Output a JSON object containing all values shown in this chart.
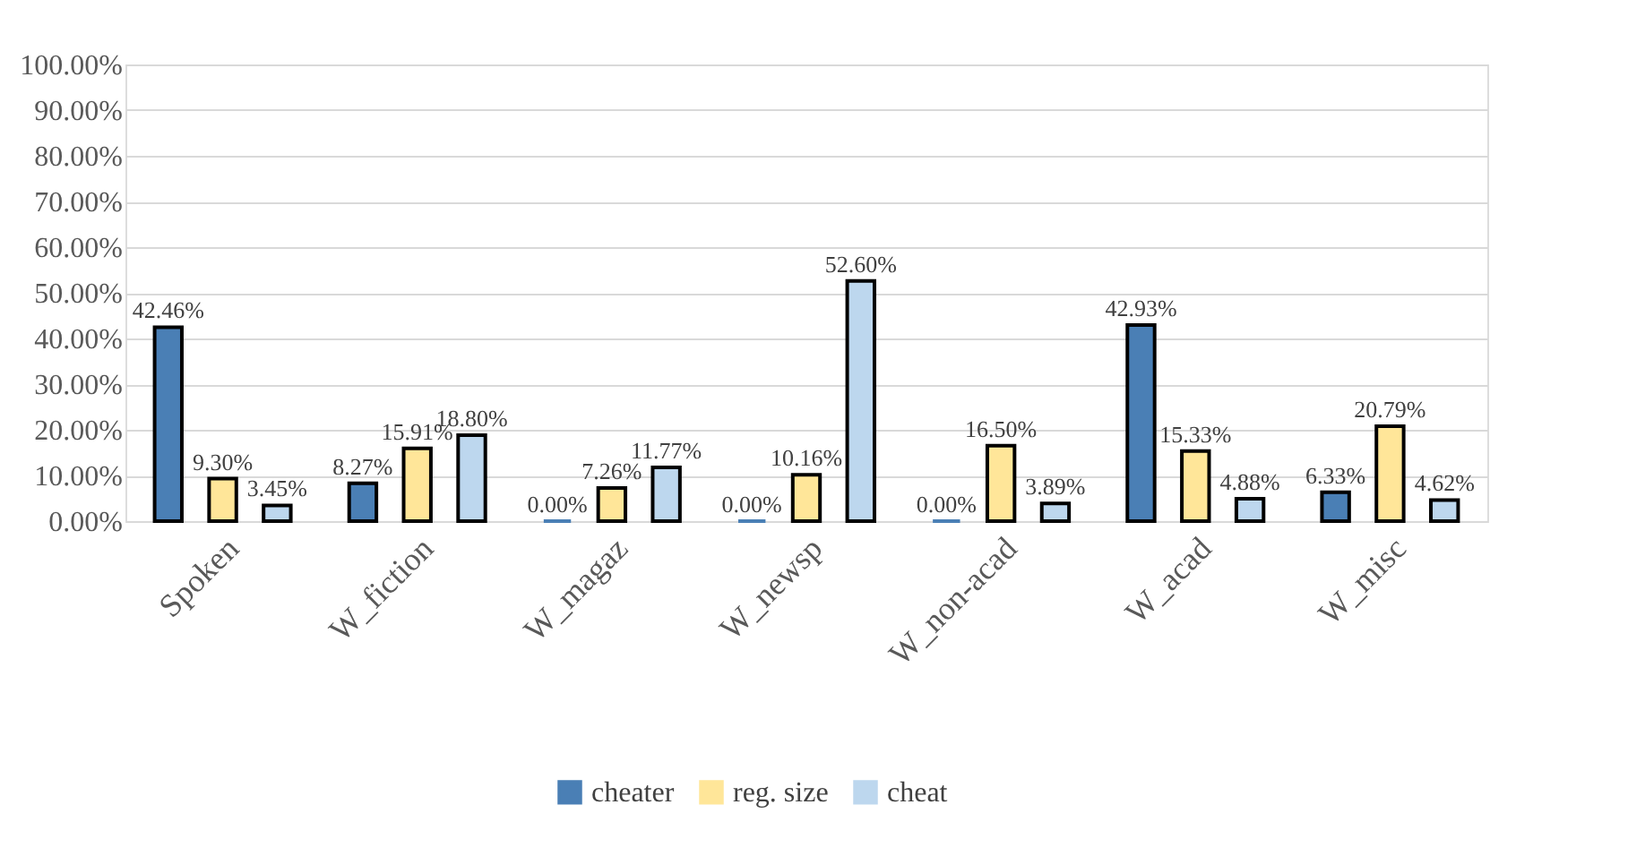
{
  "chart_data": {
    "type": "bar",
    "categories": [
      "Spoken",
      "W_fiction",
      "W_magaz",
      "W_newsp",
      "W_non-acad",
      "W_acad",
      "W_misc"
    ],
    "series": [
      {
        "name": "cheater",
        "color": "#4a7fb5",
        "values": [
          42.46,
          8.27,
          0,
          0,
          0,
          42.93,
          6.33
        ],
        "value_labels": [
          "42.46%",
          "8.27%",
          "0.00%",
          "0.00%",
          "0.00%",
          "42.93%",
          "6.33%"
        ]
      },
      {
        "name": "reg. size",
        "color": "#ffe699",
        "values": [
          9.3,
          15.91,
          7.26,
          10.16,
          16.5,
          15.33,
          20.79
        ],
        "value_labels": [
          "9.30%",
          "15.91%",
          "7.26%",
          "10.16%",
          "16.50%",
          "15.33%",
          "20.79%"
        ]
      },
      {
        "name": "cheat",
        "color": "#bdd7ee",
        "values": [
          3.45,
          18.8,
          11.77,
          52.6,
          3.89,
          4.88,
          4.62
        ],
        "value_labels": [
          "3.45%",
          "18.80%",
          "11.77%",
          "52.60%",
          "3.89%",
          "4.88%",
          "4.62%"
        ]
      }
    ],
    "ylim": [
      0,
      100
    ],
    "yticks": [
      {
        "value": 0,
        "label": "0.00%"
      },
      {
        "value": 10,
        "label": "10.00%"
      },
      {
        "value": 20,
        "label": "20.00%"
      },
      {
        "value": 30,
        "label": "30.00%"
      },
      {
        "value": 40,
        "label": "40.00%"
      },
      {
        "value": 50,
        "label": "50.00%"
      },
      {
        "value": 60,
        "label": "60.00%"
      },
      {
        "value": 70,
        "label": "70.00%"
      },
      {
        "value": 80,
        "label": "80.00%"
      },
      {
        "value": 90,
        "label": "90.00%"
      },
      {
        "value": 100,
        "label": "100.00%"
      }
    ],
    "grid": "y",
    "legend": "bottom"
  }
}
